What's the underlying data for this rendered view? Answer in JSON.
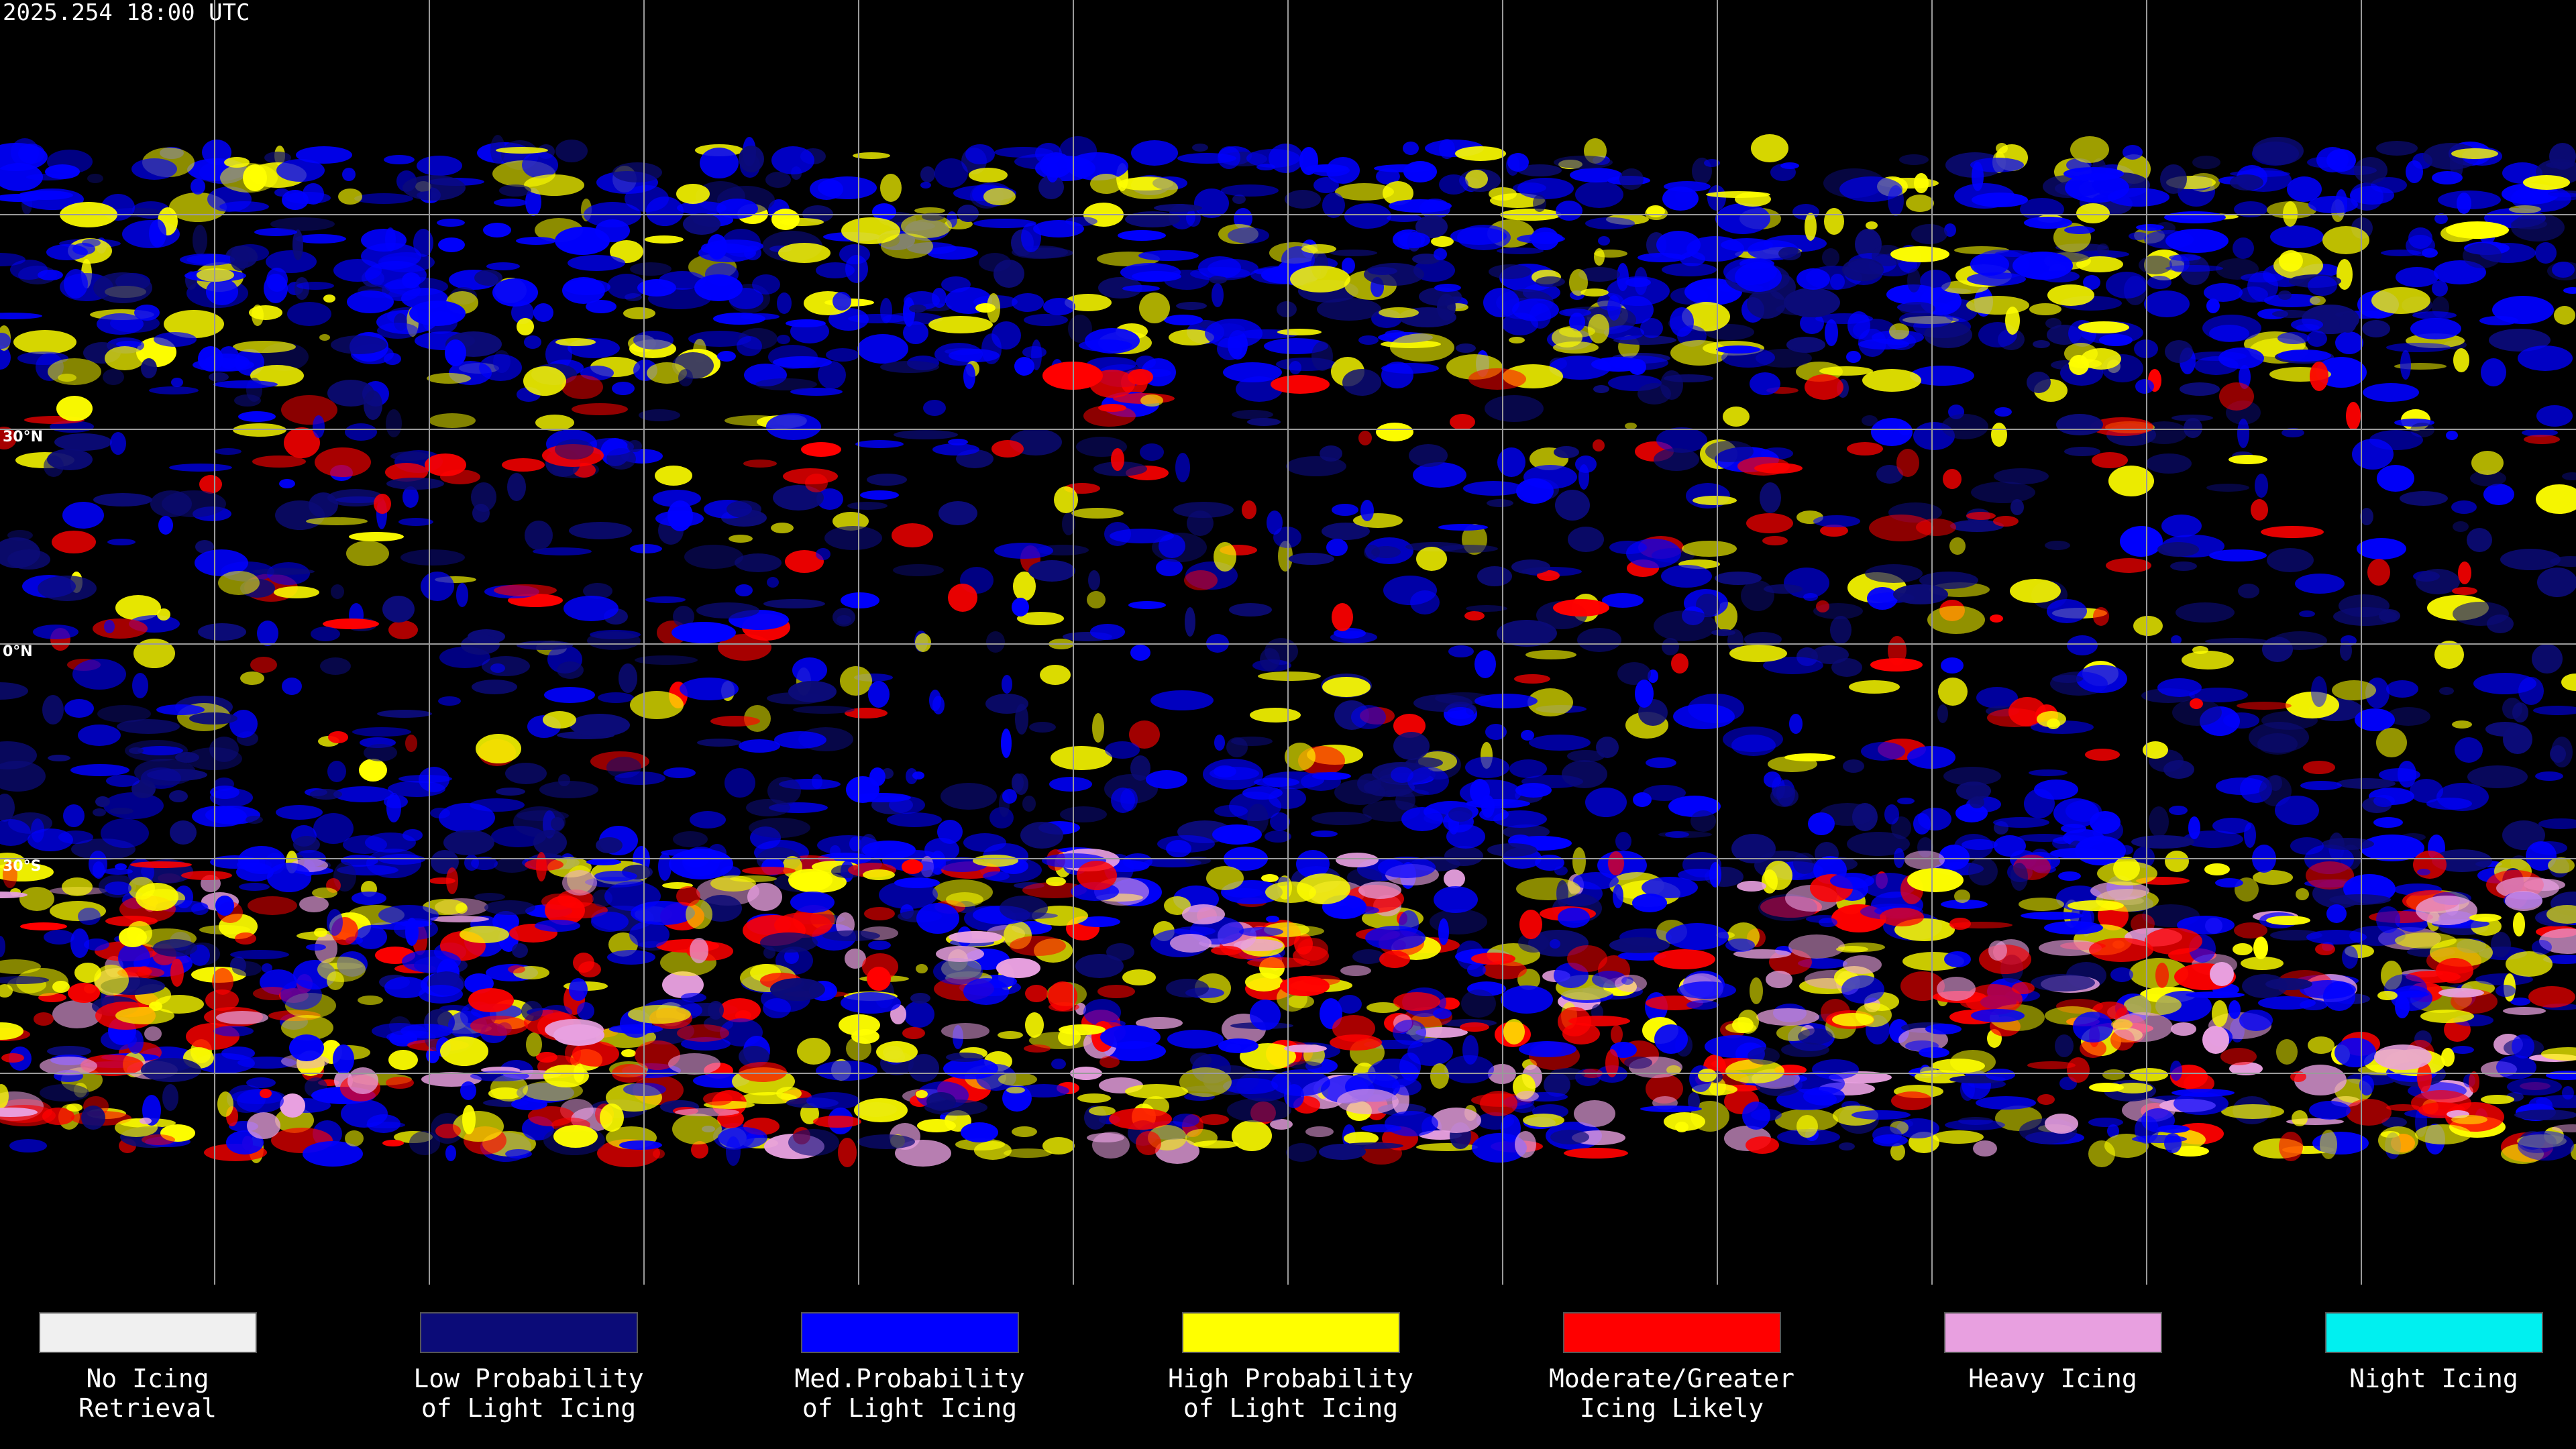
{
  "title": "2025.254 18:00 UTC",
  "lat_labels": [
    "30°N",
    "0°N",
    "30°S"
  ],
  "legend": [
    {
      "lines": [
        "No Icing",
        "Retrieval"
      ],
      "color": "#f0f0f0"
    },
    {
      "lines": [
        "Low Probability",
        "of Light Icing"
      ],
      "color": "#0b0b78"
    },
    {
      "lines": [
        "Med.Probability",
        "of Light Icing"
      ],
      "color": "#0000ff"
    },
    {
      "lines": [
        "High Probability",
        "of Light Icing"
      ],
      "color": "#ffff00"
    },
    {
      "lines": [
        "Moderate/Greater",
        "Icing Likely"
      ],
      "color": "#ff0000"
    },
    {
      "lines": [
        "Heavy Icing"
      ],
      "color": "#e8a0e0"
    },
    {
      "lines": [
        "Night Icing"
      ],
      "color": "#00f0f0"
    }
  ]
}
